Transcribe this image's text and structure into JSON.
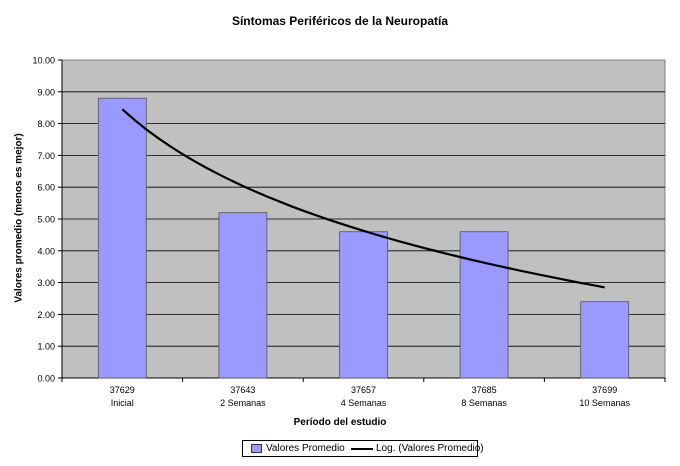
{
  "chart_data": {
    "type": "bar",
    "title": "Síntomas Periféricos de la Neuropatía",
    "xlabel": "Período del estudio",
    "ylabel": "Valores promedio (menos es mejor)",
    "categories": [
      {
        "code": "37629",
        "label": "Inicial"
      },
      {
        "code": "37643",
        "label": "2 Semanas"
      },
      {
        "code": "37657",
        "label": "4 Semanas"
      },
      {
        "code": "37685",
        "label": "8 Semanas"
      },
      {
        "code": "37699",
        "label": "10 Semanas"
      }
    ],
    "series": [
      {
        "name": "Valores Promedio",
        "type": "bar",
        "values": [
          8.8,
          5.2,
          4.6,
          4.6,
          2.4
        ],
        "color": "#9999ff"
      },
      {
        "name": "Log. (Valores Promedio)",
        "type": "line",
        "trend": "logarithmic",
        "values": [
          8.45,
          6.05,
          4.55,
          3.55,
          2.85
        ],
        "color": "#000000"
      }
    ],
    "ylim": [
      0,
      10
    ],
    "yticks": [
      "0.00",
      "1.00",
      "2.00",
      "3.00",
      "4.00",
      "5.00",
      "6.00",
      "7.00",
      "8.00",
      "9.00",
      "10.00"
    ],
    "grid": true,
    "plot_background": "#c0c0c0",
    "legend_position": "bottom"
  }
}
